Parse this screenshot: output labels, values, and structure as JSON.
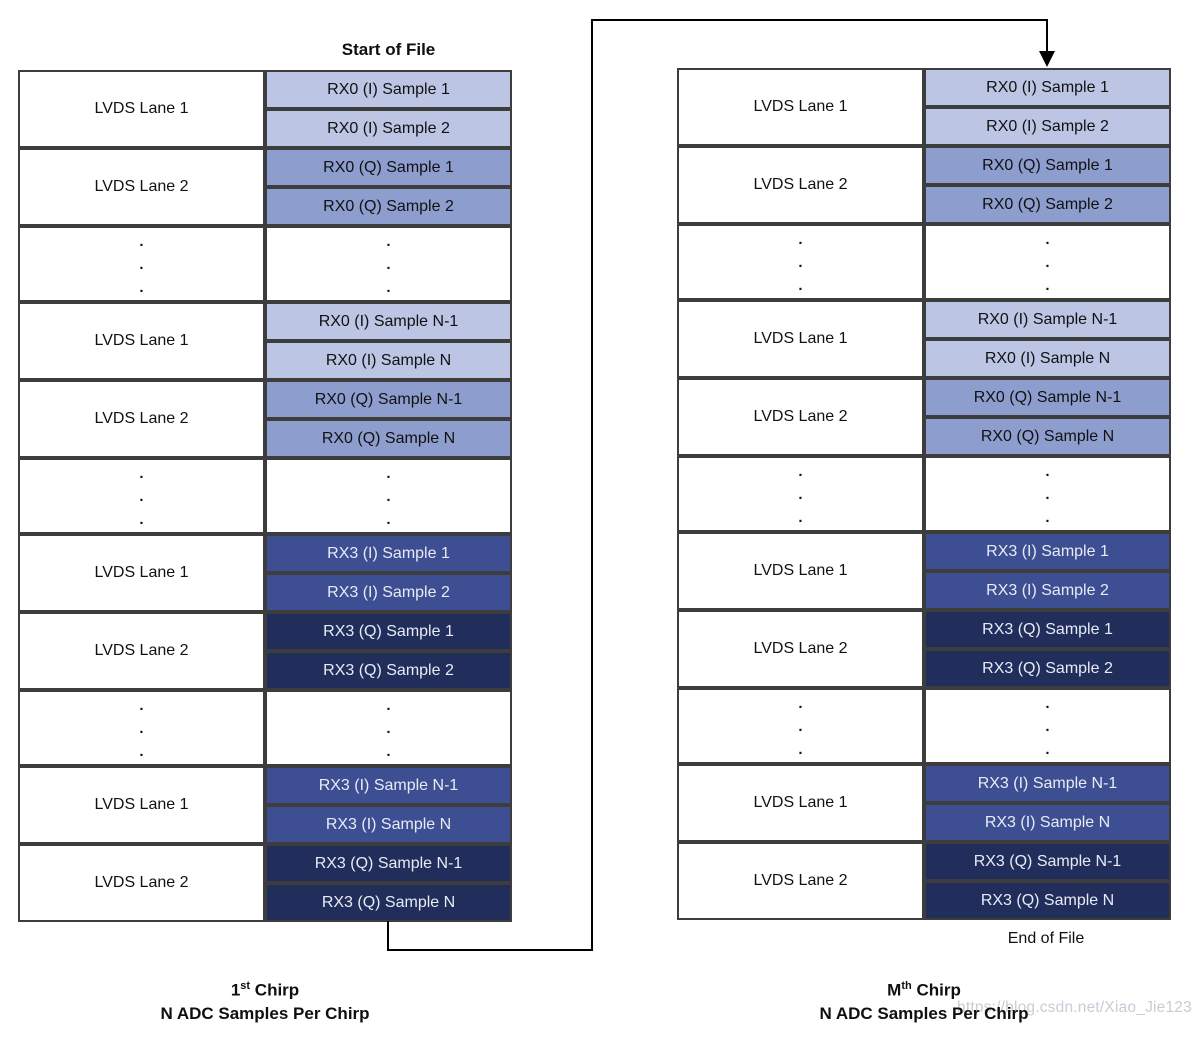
{
  "labels": {
    "start_of_file": "Start of File",
    "end_of_file": "End of File"
  },
  "tables": {
    "left": {
      "caption": {
        "base": "1",
        "sup": "st",
        "rest": " Chirp",
        "line2": "N ADC Samples Per Chirp"
      },
      "rows": [
        {
          "type": "lane",
          "label": "LVDS Lane 1",
          "style": "rx0_i",
          "cells": [
            "RX0 (I) Sample 1",
            "RX0 (I) Sample 2"
          ]
        },
        {
          "type": "lane",
          "label": "LVDS Lane 2",
          "style": "rx0_q",
          "cells": [
            "RX0 (Q) Sample 1",
            "RX0 (Q) Sample 2"
          ]
        },
        {
          "type": "dots"
        },
        {
          "type": "lane",
          "label": "LVDS Lane 1",
          "style": "rx0_i",
          "cells": [
            "RX0 (I) Sample N-1",
            "RX0 (I) Sample N"
          ]
        },
        {
          "type": "lane",
          "label": "LVDS Lane 2",
          "style": "rx0_q",
          "cells": [
            "RX0 (Q) Sample N-1",
            "RX0 (Q) Sample N"
          ]
        },
        {
          "type": "dots"
        },
        {
          "type": "lane",
          "label": "LVDS Lane 1",
          "style": "rx3_i",
          "cells": [
            "RX3 (I) Sample 1",
            "RX3 (I) Sample 2"
          ]
        },
        {
          "type": "lane",
          "label": "LVDS Lane 2",
          "style": "rx3_q",
          "cells": [
            "RX3 (Q) Sample 1",
            "RX3 (Q) Sample 2"
          ]
        },
        {
          "type": "dots"
        },
        {
          "type": "lane",
          "label": "LVDS Lane 1",
          "style": "rx3_i",
          "cells": [
            "RX3 (I) Sample N-1",
            "RX3 (I) Sample N"
          ]
        },
        {
          "type": "lane",
          "label": "LVDS Lane 2",
          "style": "rx3_q",
          "cells": [
            "RX3 (Q) Sample N-1",
            "RX3 (Q) Sample N"
          ]
        }
      ]
    },
    "right": {
      "caption": {
        "base": "M",
        "sup": "th",
        "rest": " Chirp",
        "line2": "N ADC Samples Per Chirp"
      },
      "rows": [
        {
          "type": "lane",
          "label": "LVDS Lane 1",
          "style": "rx0_i",
          "cells": [
            "RX0 (I) Sample 1",
            "RX0 (I) Sample 2"
          ]
        },
        {
          "type": "lane",
          "label": "LVDS Lane 2",
          "style": "rx0_q",
          "cells": [
            "RX0 (Q) Sample 1",
            "RX0 (Q) Sample 2"
          ]
        },
        {
          "type": "dots"
        },
        {
          "type": "lane",
          "label": "LVDS Lane 1",
          "style": "rx0_i",
          "cells": [
            "RX0 (I) Sample N-1",
            "RX0 (I) Sample N"
          ]
        },
        {
          "type": "lane",
          "label": "LVDS Lane 2",
          "style": "rx0_q",
          "cells": [
            "RX0 (Q) Sample N-1",
            "RX0 (Q) Sample N"
          ]
        },
        {
          "type": "dots"
        },
        {
          "type": "lane",
          "label": "LVDS Lane 1",
          "style": "rx3_i",
          "cells": [
            "RX3 (I) Sample 1",
            "RX3 (I) Sample 2"
          ]
        },
        {
          "type": "lane",
          "label": "LVDS Lane 2",
          "style": "rx3_q",
          "cells": [
            "RX3 (Q) Sample 1",
            "RX3 (Q) Sample 2"
          ]
        },
        {
          "type": "dots"
        },
        {
          "type": "lane",
          "label": "LVDS Lane 1",
          "style": "rx3_i",
          "cells": [
            "RX3 (I) Sample N-1",
            "RX3 (I) Sample N"
          ]
        },
        {
          "type": "lane",
          "label": "LVDS Lane 2",
          "style": "rx3_q",
          "cells": [
            "RX3 (Q) Sample N-1",
            "RX3 (Q) Sample N"
          ]
        }
      ]
    }
  },
  "dots": [
    ".",
    ".",
    "."
  ],
  "watermark": {
    "text": "https://blog.csdn.net/Xiao_Jie123",
    "color": "#c7cdd6"
  },
  "colors": {
    "border": "#3d3d3d",
    "rx0_i_fill": "#bcc5e3",
    "rx0_q_fill": "#8d9dce",
    "rx3_i_fill": "#3d4f92",
    "rx3_q_fill": "#212e5b",
    "light_cell_text": "#111111",
    "dark_cell_text": "#e8ebf4",
    "arrow": "#000000"
  }
}
